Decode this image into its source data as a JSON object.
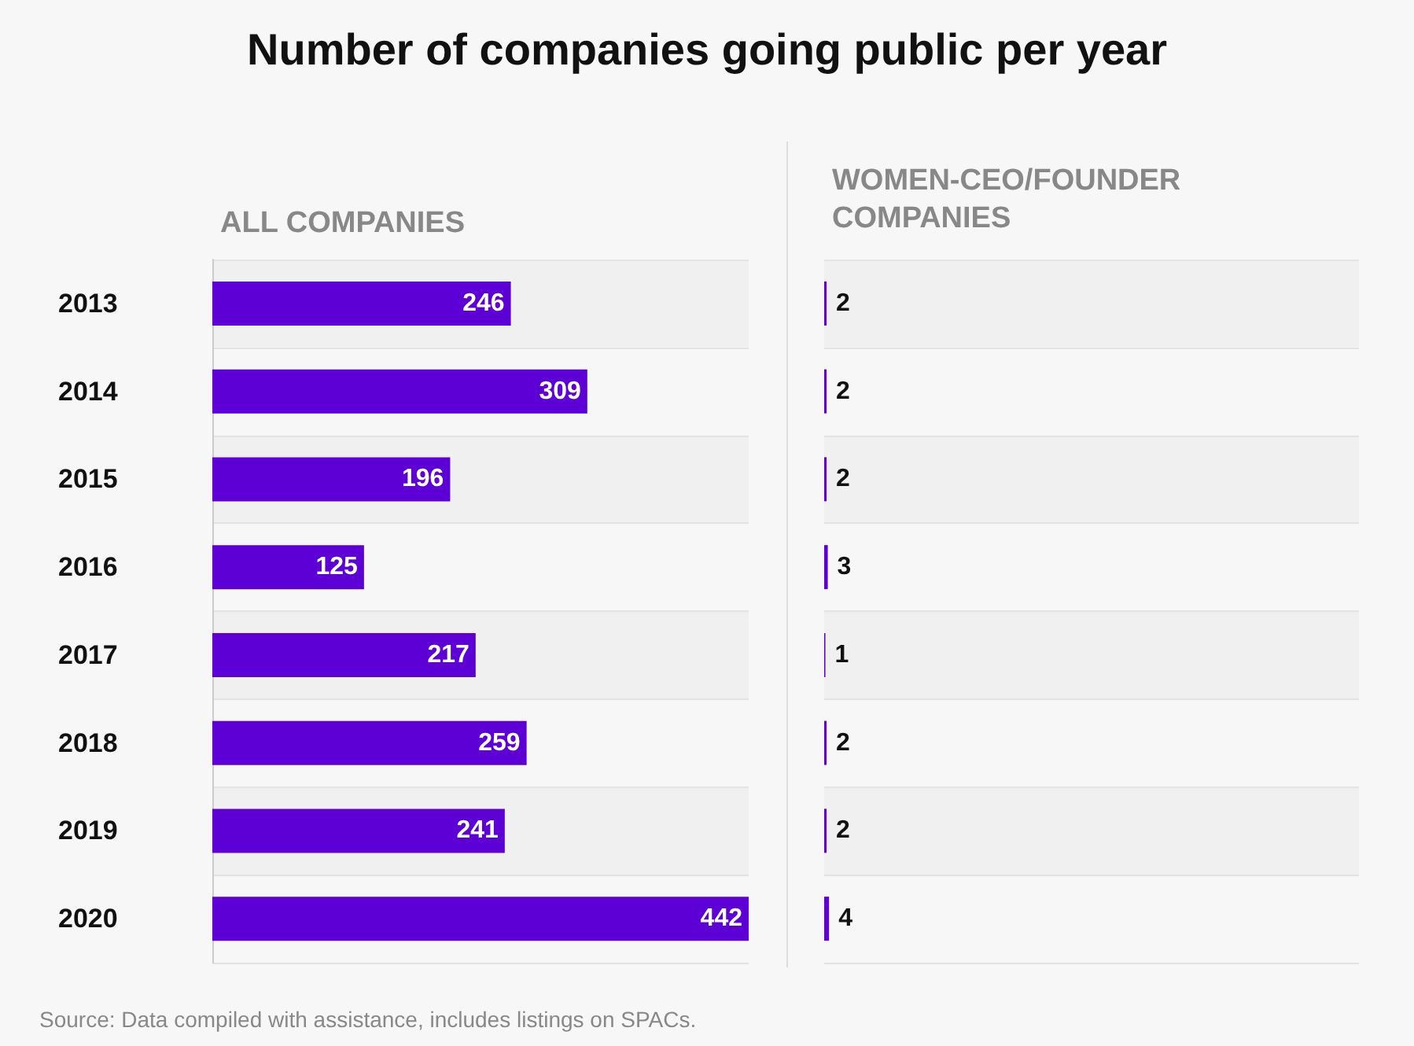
{
  "chart_data": [
    {
      "type": "bar",
      "title": "Number of companies going public per year",
      "subtitle": "ALL COMPANIES",
      "orientation": "horizontal",
      "categories": [
        "2013",
        "2014",
        "2015",
        "2016",
        "2017",
        "2018",
        "2019",
        "2020"
      ],
      "values": [
        246,
        309,
        196,
        125,
        217,
        259,
        241,
        442
      ],
      "color": "#5c00d6",
      "data_labels": true
    },
    {
      "type": "bar",
      "subtitle": "WOMEN-CEO/FOUNDER COMPANIES",
      "orientation": "horizontal",
      "categories": [
        "2013",
        "2014",
        "2015",
        "2016",
        "2017",
        "2018",
        "2019",
        "2020"
      ],
      "values": [
        2,
        2,
        2,
        3,
        1,
        2,
        2,
        4
      ],
      "color": "#5c00d6",
      "data_labels": true,
      "tick_labels": false,
      "annotations": [
        "Source: Data compiled with assistance, includes listings on SPACs."
      ]
    }
  ]
}
